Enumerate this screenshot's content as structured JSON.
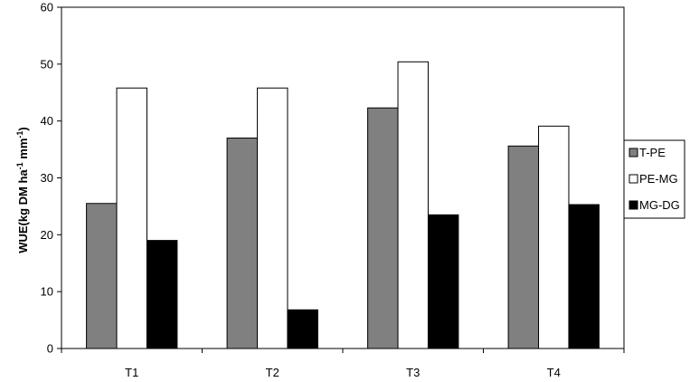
{
  "chart_data": {
    "type": "bar",
    "categories": [
      "T1",
      "T2",
      "T3",
      "T4"
    ],
    "series": [
      {
        "name": "T-PE",
        "values": [
          25.5,
          37.0,
          42.3,
          35.6
        ],
        "color": "#808080"
      },
      {
        "name": "PE-MG",
        "values": [
          45.8,
          45.8,
          50.4,
          39.1
        ],
        "color": "#ffffff"
      },
      {
        "name": "MG-DG",
        "values": [
          19.0,
          6.8,
          23.5,
          25.3
        ],
        "color": "#000000"
      }
    ],
    "ylabel": {
      "main": "WUE(kg DM ha",
      "sup1": "-1",
      "mid": " mm",
      "sup2": "-1",
      "end": ")"
    },
    "ylim": [
      0,
      60
    ],
    "yticks": [
      0,
      10,
      20,
      30,
      40,
      50,
      60
    ],
    "legend_position": "right",
    "grid": false
  }
}
